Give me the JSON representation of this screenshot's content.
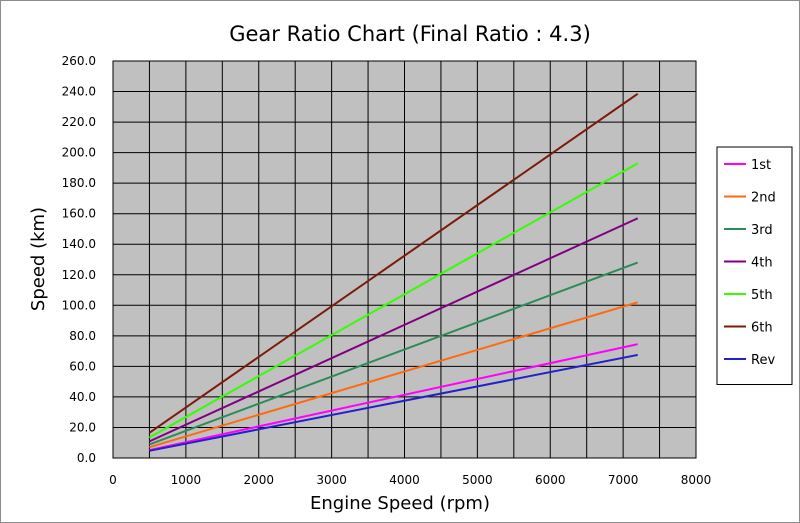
{
  "chart_data": {
    "type": "line",
    "title": "Gear Ratio Chart (Final Ratio : 4.3)",
    "xlabel": "Engine Speed  (rpm)",
    "ylabel": "Speed  (km)",
    "xlim": [
      0,
      8000
    ],
    "ylim": [
      0,
      260
    ],
    "x_ticks": [
      "0",
      "1000",
      "2000",
      "3000",
      "4000",
      "5000",
      "6000",
      "7000",
      "8000"
    ],
    "y_ticks": [
      "0.0",
      "20.0",
      "40.0",
      "60.0",
      "80.0",
      "100.0",
      "120.0",
      "140.0",
      "160.0",
      "180.0",
      "200.0",
      "220.0",
      "240.0",
      "260.0"
    ],
    "grid": true,
    "legend_position": "right",
    "plot_background": "#c0c0c0",
    "series": [
      {
        "name": "1st",
        "color": "#ff00ff",
        "x": [
          500,
          7200
        ],
        "y": [
          5.2,
          74.5
        ]
      },
      {
        "name": "2nd",
        "color": "#ff6a10",
        "x": [
          500,
          7200
        ],
        "y": [
          7.1,
          102.0
        ]
      },
      {
        "name": "3rd",
        "color": "#2e8b57",
        "x": [
          500,
          7200
        ],
        "y": [
          8.9,
          128.0
        ]
      },
      {
        "name": "4th",
        "color": "#800080",
        "x": [
          500,
          7200
        ],
        "y": [
          10.9,
          157.0
        ]
      },
      {
        "name": "5th",
        "color": "#33ff00",
        "x": [
          500,
          7200
        ],
        "y": [
          13.4,
          193.0
        ]
      },
      {
        "name": "6th",
        "color": "#7b1a0a",
        "x": [
          500,
          7200
        ],
        "y": [
          16.5,
          238.5
        ]
      },
      {
        "name": "Rev",
        "color": "#2222cc",
        "x": [
          500,
          7200
        ],
        "y": [
          4.7,
          67.5
        ]
      }
    ]
  }
}
